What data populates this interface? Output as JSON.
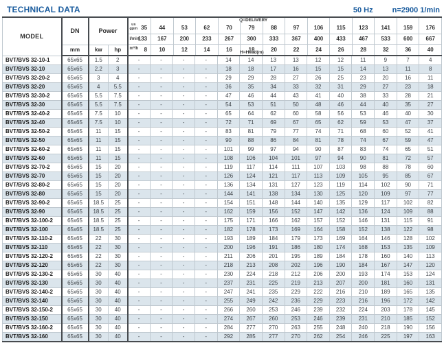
{
  "header": {
    "title": "TECHNICAL DATA",
    "frequency": "50 Hz",
    "speed": "n=2900 1/min"
  },
  "table": {
    "column_headers": {
      "model": "MODEL",
      "dn": "DN",
      "power": "Power",
      "mm": "mm",
      "kw": "kw",
      "hp": "hp"
    },
    "delivery": {
      "q_label": "Q=DELIVERY",
      "h_label": "H=Head(m)",
      "units": {
        "us": "us",
        "gpm": "gpm",
        "lmin": "l/min",
        "m3h": "m³/h"
      },
      "gpm": [
        35,
        44,
        53,
        62,
        70,
        79,
        88,
        97,
        106,
        115,
        123,
        141,
        159,
        176
      ],
      "lmin": [
        133,
        167,
        200,
        233,
        267,
        300,
        333,
        367,
        400,
        433,
        467,
        533,
        600,
        667
      ],
      "m3h": [
        8,
        10,
        12,
        14,
        16,
        18,
        20,
        22,
        24,
        26,
        28,
        32,
        36,
        40
      ]
    },
    "rows": [
      {
        "model": "BVT/BVS 32-10-1",
        "dn": "65x65",
        "kw": "1.5",
        "hp": "2",
        "head": [
          "-",
          "-",
          "-",
          "-",
          "14",
          "14",
          "13",
          "13",
          "12",
          "12",
          "11",
          "9",
          "7",
          "4"
        ]
      },
      {
        "model": "BVT/BVS 32-10",
        "dn": "65x65",
        "kw": "2.2",
        "hp": "3",
        "head": [
          "-",
          "-",
          "-",
          "-",
          "18",
          "18",
          "17",
          "16",
          "15",
          "15",
          "14",
          "13",
          "11",
          "8"
        ]
      },
      {
        "model": "BVT/BVS 32-20-2",
        "dn": "65x65",
        "kw": "3",
        "hp": "4",
        "head": [
          "-",
          "-",
          "-",
          "-",
          "29",
          "29",
          "28",
          "27",
          "26",
          "25",
          "23",
          "20",
          "16",
          "11"
        ]
      },
      {
        "model": "BVT/BVS 32-20",
        "dn": "65x65",
        "kw": "4",
        "hp": "5.5",
        "head": [
          "-",
          "-",
          "-",
          "-",
          "36",
          "35",
          "34",
          "33",
          "32",
          "31",
          "29",
          "27",
          "23",
          "18"
        ]
      },
      {
        "model": "BVT/BVS 32-30-2",
        "dn": "65x65",
        "kw": "5.5",
        "hp": "7.5",
        "head": [
          "-",
          "-",
          "-",
          "-",
          "47",
          "46",
          "44",
          "43",
          "41",
          "40",
          "38",
          "33",
          "28",
          "21"
        ]
      },
      {
        "model": "BVT/BVS 32-30",
        "dn": "65x65",
        "kw": "5.5",
        "hp": "7.5",
        "head": [
          "-",
          "-",
          "-",
          "-",
          "54",
          "53",
          "51",
          "50",
          "48",
          "46",
          "44",
          "40",
          "35",
          "27"
        ]
      },
      {
        "model": "BVT/BVS 32-40-2",
        "dn": "65x65",
        "kw": "7.5",
        "hp": "10",
        "head": [
          "-",
          "-",
          "-",
          "-",
          "65",
          "64",
          "62",
          "60",
          "58",
          "56",
          "53",
          "46",
          "40",
          "30"
        ]
      },
      {
        "model": "BVT/BVS 32-40",
        "dn": "65x65",
        "kw": "7.5",
        "hp": "10",
        "head": [
          "-",
          "-",
          "-",
          "-",
          "72",
          "71",
          "69",
          "67",
          "65",
          "62",
          "59",
          "53",
          "47",
          "37"
        ]
      },
      {
        "model": "BVT/BVS 32-50-2",
        "dn": "65x65",
        "kw": "11",
        "hp": "15",
        "head": [
          "-",
          "-",
          "-",
          "-",
          "83",
          "81",
          "79",
          "77",
          "74",
          "71",
          "68",
          "60",
          "52",
          "41"
        ]
      },
      {
        "model": "BVT/BVS 32-50",
        "dn": "65x65",
        "kw": "11",
        "hp": "15",
        "head": [
          "-",
          "-",
          "-",
          "-",
          "90",
          "88",
          "86",
          "84",
          "81",
          "78",
          "74",
          "67",
          "59",
          "47"
        ]
      },
      {
        "model": "BVT/BVS 32-60-2",
        "dn": "65x65",
        "kw": "11",
        "hp": "15",
        "head": [
          "-",
          "-",
          "-",
          "-",
          "101",
          "99",
          "97",
          "94",
          "90",
          "87",
          "83",
          "74",
          "65",
          "51"
        ]
      },
      {
        "model": "BVT/BVS 32-60",
        "dn": "65x65",
        "kw": "11",
        "hp": "15",
        "head": [
          "-",
          "-",
          "-",
          "-",
          "108",
          "106",
          "104",
          "101",
          "97",
          "94",
          "90",
          "81",
          "72",
          "57"
        ]
      },
      {
        "model": "BVT/BVS 32-70-2",
        "dn": "65x65",
        "kw": "15",
        "hp": "20",
        "head": [
          "-",
          "-",
          "-",
          "-",
          "119",
          "117",
          "114",
          "111",
          "107",
          "103",
          "98",
          "88",
          "78",
          "60"
        ]
      },
      {
        "model": "BVT/BVS 32-70",
        "dn": "65x65",
        "kw": "15",
        "hp": "20",
        "head": [
          "-",
          "-",
          "-",
          "-",
          "126",
          "124",
          "121",
          "117",
          "113",
          "109",
          "105",
          "95",
          "85",
          "67"
        ]
      },
      {
        "model": "BVT/BVS 32-80-2",
        "dn": "65x65",
        "kw": "15",
        "hp": "20",
        "head": [
          "-",
          "-",
          "-",
          "-",
          "136",
          "134",
          "131",
          "127",
          "123",
          "119",
          "114",
          "102",
          "90",
          "71"
        ]
      },
      {
        "model": "BVT/BVS 32-80",
        "dn": "65x65",
        "kw": "15",
        "hp": "20",
        "head": [
          "-",
          "-",
          "-",
          "-",
          "144",
          "141",
          "138",
          "134",
          "130",
          "125",
          "120",
          "109",
          "97",
          "77"
        ]
      },
      {
        "model": "BVT/BVS 32-90-2",
        "dn": "65x65",
        "kw": "18.5",
        "hp": "25",
        "head": [
          "-",
          "-",
          "-",
          "-",
          "154",
          "151",
          "148",
          "144",
          "140",
          "135",
          "129",
          "117",
          "102",
          "82"
        ]
      },
      {
        "model": "BVT/BVS 32-90",
        "dn": "65x65",
        "kw": "18.5",
        "hp": "25",
        "head": [
          "-",
          "-",
          "-",
          "-",
          "162",
          "159",
          "156",
          "152",
          "147",
          "142",
          "136",
          "124",
          "109",
          "88"
        ]
      },
      {
        "model": "BVT/BVS 32-100-2",
        "dn": "65x65",
        "kw": "18.5",
        "hp": "25",
        "head": [
          "-",
          "-",
          "-",
          "-",
          "175",
          "171",
          "166",
          "162",
          "157",
          "152",
          "146",
          "131",
          "115",
          "91"
        ]
      },
      {
        "model": "BVT/BVS 32-100",
        "dn": "65x65",
        "kw": "18.5",
        "hp": "25",
        "head": [
          "-",
          "-",
          "-",
          "-",
          "182",
          "178",
          "173",
          "169",
          "164",
          "158",
          "152",
          "138",
          "122",
          "98"
        ]
      },
      {
        "model": "BVT/BVS 32-110-2",
        "dn": "65x65",
        "kw": "22",
        "hp": "30",
        "head": [
          "-",
          "-",
          "-",
          "-",
          "193",
          "189",
          "184",
          "179",
          "173",
          "169",
          "164",
          "146",
          "128",
          "102"
        ]
      },
      {
        "model": "BVT/BVS 32-110",
        "dn": "65x65",
        "kw": "22",
        "hp": "30",
        "head": [
          "-",
          "-",
          "-",
          "-",
          "200",
          "196",
          "191",
          "186",
          "180",
          "174",
          "168",
          "153",
          "135",
          "109"
        ]
      },
      {
        "model": "BVT/BVS 32-120-2",
        "dn": "65x65",
        "kw": "22",
        "hp": "30",
        "head": [
          "-",
          "-",
          "-",
          "-",
          "211",
          "206",
          "201",
          "195",
          "189",
          "184",
          "178",
          "160",
          "140",
          "113"
        ]
      },
      {
        "model": "BVT/BVS 32-120",
        "dn": "65x65",
        "kw": "22",
        "hp": "30",
        "head": [
          "-",
          "-",
          "-",
          "-",
          "218",
          "213",
          "208",
          "202",
          "196",
          "190",
          "184",
          "167",
          "147",
          "120"
        ]
      },
      {
        "model": "BVT/BVS 32-130-2",
        "dn": "65x65",
        "kw": "30",
        "hp": "40",
        "head": [
          "-",
          "-",
          "-",
          "-",
          "230",
          "224",
          "218",
          "212",
          "206",
          "200",
          "193",
          "174",
          "153",
          "124"
        ]
      },
      {
        "model": "BVT/BVS 32-130",
        "dn": "65x65",
        "kw": "30",
        "hp": "40",
        "head": [
          "-",
          "-",
          "-",
          "-",
          "237",
          "231",
          "225",
          "219",
          "213",
          "207",
          "200",
          "181",
          "160",
          "131"
        ]
      },
      {
        "model": "BVT/BVS 32-140-2",
        "dn": "65x65",
        "kw": "30",
        "hp": "40",
        "head": [
          "-",
          "-",
          "-",
          "-",
          "247",
          "241",
          "235",
          "229",
          "222",
          "216",
          "210",
          "189",
          "165",
          "135"
        ]
      },
      {
        "model": "BVT/BVS 32-140",
        "dn": "65x65",
        "kw": "30",
        "hp": "40",
        "head": [
          "-",
          "-",
          "-",
          "-",
          "255",
          "249",
          "242",
          "236",
          "229",
          "223",
          "216",
          "196",
          "172",
          "142"
        ]
      },
      {
        "model": "BVT/BVS 32-150-2",
        "dn": "65x65",
        "kw": "30",
        "hp": "40",
        "head": [
          "-",
          "-",
          "-",
          "-",
          "266",
          "260",
          "253",
          "246",
          "239",
          "232",
          "224",
          "203",
          "178",
          "145"
        ]
      },
      {
        "model": "BVT/BVS 32-150",
        "dn": "65x65",
        "kw": "30",
        "hp": "40",
        "head": [
          "-",
          "-",
          "-",
          "-",
          "274",
          "267",
          "260",
          "253",
          "246",
          "239",
          "231",
          "210",
          "185",
          "152"
        ]
      },
      {
        "model": "BVT/BVS 32-160-2",
        "dn": "65x65",
        "kw": "30",
        "hp": "40",
        "head": [
          "-",
          "-",
          "-",
          "-",
          "284",
          "277",
          "270",
          "263",
          "255",
          "248",
          "240",
          "218",
          "190",
          "156"
        ]
      },
      {
        "model": "BVT/BVS 32-160",
        "dn": "65x65",
        "kw": "30",
        "hp": "40",
        "head": [
          "-",
          "-",
          "-",
          "-",
          "292",
          "285",
          "277",
          "270",
          "262",
          "254",
          "246",
          "225",
          "197",
          "163"
        ]
      }
    ]
  }
}
